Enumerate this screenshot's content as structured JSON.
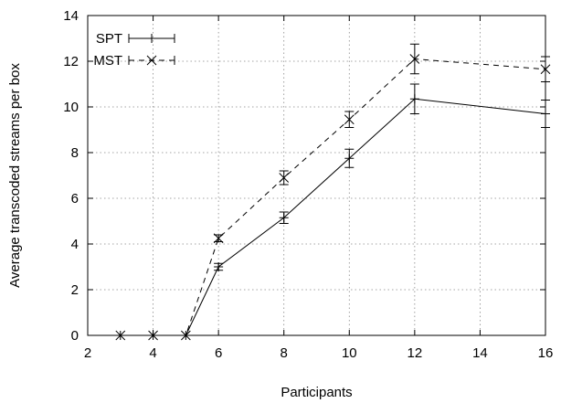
{
  "chart_data": {
    "type": "line",
    "xlabel": "Participants",
    "ylabel": "Average transcoded streams per box",
    "xlim": [
      2,
      16
    ],
    "ylim": [
      0,
      14
    ],
    "xticks": [
      "2",
      "4",
      "6",
      "8",
      "10",
      "12",
      "14",
      "16"
    ],
    "yticks": [
      "0",
      "2",
      "4",
      "6",
      "8",
      "10",
      "12",
      "14"
    ],
    "grid": true,
    "legend_position": "top-left",
    "series": [
      {
        "name": "SPT",
        "line_style": "solid",
        "marker": "plus",
        "points": [
          {
            "x": 3,
            "y": 0,
            "err": 0
          },
          {
            "x": 4,
            "y": 0,
            "err": 0
          },
          {
            "x": 5,
            "y": 0,
            "err": 0
          },
          {
            "x": 6,
            "y": 3.0,
            "err": 0.15
          },
          {
            "x": 8,
            "y": 5.15,
            "err": 0.25
          },
          {
            "x": 10,
            "y": 7.75,
            "err": 0.4
          },
          {
            "x": 12,
            "y": 10.35,
            "err": 0.65
          },
          {
            "x": 16,
            "y": 9.7,
            "err": 0.6
          }
        ]
      },
      {
        "name": "MST",
        "line_style": "dashed",
        "marker": "cross",
        "points": [
          {
            "x": 3,
            "y": 0,
            "err": 0
          },
          {
            "x": 4,
            "y": 0,
            "err": 0
          },
          {
            "x": 5,
            "y": 0,
            "err": 0
          },
          {
            "x": 6,
            "y": 4.25,
            "err": 0.15
          },
          {
            "x": 8,
            "y": 6.9,
            "err": 0.3
          },
          {
            "x": 10,
            "y": 9.45,
            "err": 0.35
          },
          {
            "x": 12,
            "y": 12.1,
            "err": 0.65
          },
          {
            "x": 16,
            "y": 11.65,
            "err": 0.55
          }
        ]
      }
    ]
  }
}
